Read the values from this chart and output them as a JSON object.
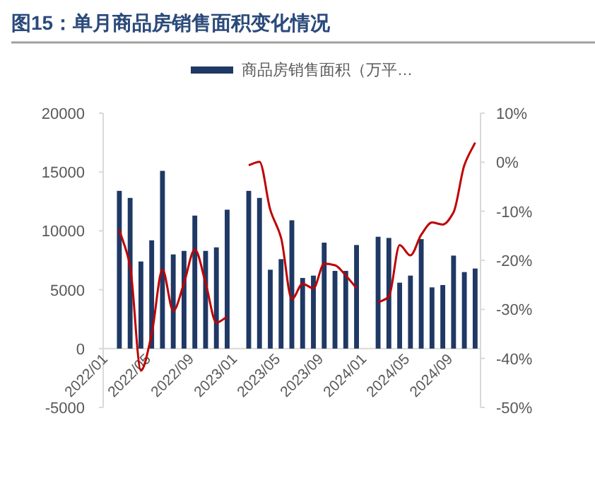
{
  "chart_data": {
    "type": "bar",
    "title": "图15：单月商品房销售面积变化情况",
    "categories": [
      "2022/01",
      null,
      null,
      null,
      "2022/05",
      null,
      null,
      null,
      "2022/09",
      null,
      null,
      null,
      "2023/01",
      null,
      null,
      null,
      "2023/05",
      null,
      null,
      null,
      "2023/09",
      null,
      null,
      null,
      "2024/01",
      null,
      null,
      null,
      "2024/05",
      null,
      null,
      null,
      "2024/09",
      null,
      null
    ],
    "series": [
      {
        "name": "商品房销售面积（万平…",
        "color": "#1f3864",
        "values": [
          null,
          13400,
          12800,
          7400,
          9200,
          15100,
          8000,
          8300,
          11300,
          8300,
          8600,
          11800,
          null,
          13400,
          12800,
          6700,
          7600,
          10900,
          6000,
          6200,
          9000,
          6600,
          6600,
          8800,
          null,
          9500,
          9400,
          5600,
          6200,
          9300,
          5200,
          5400,
          7900,
          6500,
          6800
        ]
      },
      {
        "type": "line",
        "axis": "y2",
        "color": "#c00000",
        "values": [
          null,
          -13.8,
          -21.2,
          -42.5,
          -35,
          -21.9,
          -30.3,
          -24.6,
          -17.8,
          -24.6,
          -32.7,
          -31.5,
          null,
          -0.6,
          0.1,
          -9.7,
          -15.4,
          -27.9,
          -24.8,
          -25.7,
          -20.7,
          -21,
          -23.1,
          -25.7,
          null,
          -28.6,
          -27.4,
          -16.9,
          -19,
          -14.8,
          -12.3,
          -12.7,
          -10.2,
          -0.6,
          4.0
        ]
      }
    ],
    "ylim": [
      -5000,
      20000
    ],
    "yticks": [
      -5000,
      0,
      5000,
      10000,
      15000,
      20000
    ],
    "y2lim": [
      -50,
      10
    ],
    "y2ticks": [
      {
        "value": -50,
        "label": "-50%"
      },
      {
        "value": -40,
        "label": "-40%"
      },
      {
        "value": -30,
        "label": "-30%"
      },
      {
        "value": -20,
        "label": "-20%"
      },
      {
        "value": -10,
        "label": "-10%"
      },
      {
        "value": 0,
        "label": "0%"
      },
      {
        "value": 10,
        "label": "10%"
      }
    ],
    "grid": false,
    "legend": "top"
  }
}
